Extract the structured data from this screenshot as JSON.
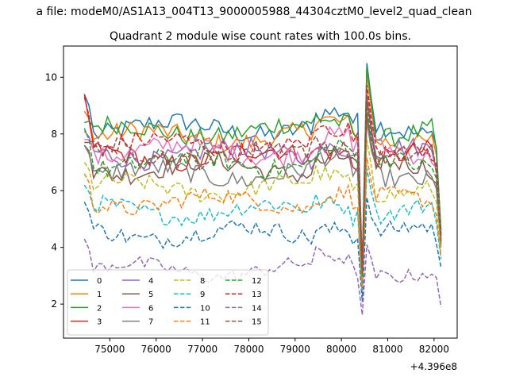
{
  "chart_data": {
    "type": "line",
    "suptitle": "a file: modeM0/AS1A13_004T13_9000005988_44304cztM0_level2_quad_clean",
    "title": "Quadrant 2 module wise count rates with 100.0s bins.",
    "xlabel": "",
    "ylabel": "",
    "offset_text": "+4.396e8",
    "xlim": [
      74000,
      82500
    ],
    "ylim": [
      0.8,
      11.1
    ],
    "xticks": [
      "75000",
      "76000",
      "77000",
      "78000",
      "79000",
      "80000",
      "81000",
      "82000"
    ],
    "yticks": [
      "2",
      "4",
      "6",
      "8",
      "10"
    ],
    "x_range": [
      74450,
      82150
    ],
    "x_step": 100,
    "grid": false,
    "legend_position": "lower-left",
    "series": [
      {
        "name": "0",
        "color": "#1f77b4",
        "dash": false,
        "start": 9.4,
        "base": 8.2,
        "amp": 0.35,
        "end": 4.5
      },
      {
        "name": "1",
        "color": "#ff7f0e",
        "dash": false,
        "start": 8.8,
        "base": 7.9,
        "amp": 0.35,
        "end": 4.3
      },
      {
        "name": "2",
        "color": "#2ca02c",
        "dash": false,
        "start": 8.4,
        "base": 8.1,
        "amp": 0.35,
        "end": 4.6
      },
      {
        "name": "3",
        "color": "#d62728",
        "dash": false,
        "start": 9.4,
        "base": 7.2,
        "amp": 0.35,
        "end": 4.4
      },
      {
        "name": "4",
        "color": "#9467bd",
        "dash": false,
        "start": 8.1,
        "base": 7.3,
        "amp": 0.35,
        "end": 4.2
      },
      {
        "name": "5",
        "color": "#8c564b",
        "dash": false,
        "start": 7.6,
        "base": 6.8,
        "amp": 0.35,
        "end": 4.1
      },
      {
        "name": "6",
        "color": "#e377c2",
        "dash": false,
        "start": 7.8,
        "base": 7.4,
        "amp": 0.35,
        "end": 4.3
      },
      {
        "name": "7",
        "color": "#7f7f7f",
        "dash": false,
        "start": 7.6,
        "base": 6.6,
        "amp": 0.35,
        "end": 4.0
      },
      {
        "name": "8",
        "color": "#bcbd22",
        "dash": true,
        "start": 7.0,
        "base": 6.1,
        "amp": 0.3,
        "end": 3.9
      },
      {
        "name": "9",
        "color": "#17becf",
        "dash": true,
        "start": 6.2,
        "base": 5.3,
        "amp": 0.3,
        "end": 3.6
      },
      {
        "name": "10",
        "color": "#1f77b4",
        "dash": true,
        "start": 5.6,
        "base": 4.5,
        "amp": 0.3,
        "end": 3.3
      },
      {
        "name": "11",
        "color": "#ff7f0e",
        "dash": true,
        "start": 6.6,
        "base": 5.6,
        "amp": 0.3,
        "end": 3.7
      },
      {
        "name": "12",
        "color": "#2ca02c",
        "dash": true,
        "start": 8.2,
        "base": 7.0,
        "amp": 0.35,
        "end": 4.2
      },
      {
        "name": "13",
        "color": "#d62728",
        "dash": true,
        "start": 9.3,
        "base": 7.6,
        "amp": 0.35,
        "end": 4.4
      },
      {
        "name": "14",
        "color": "#9467bd",
        "dash": true,
        "start": 4.3,
        "base": 3.2,
        "amp": 0.25,
        "end": 1.9
      },
      {
        "name": "15",
        "color": "#8c564b",
        "dash": true,
        "start": 7.7,
        "base": 7.3,
        "amp": 0.35,
        "end": 4.2
      }
    ]
  }
}
